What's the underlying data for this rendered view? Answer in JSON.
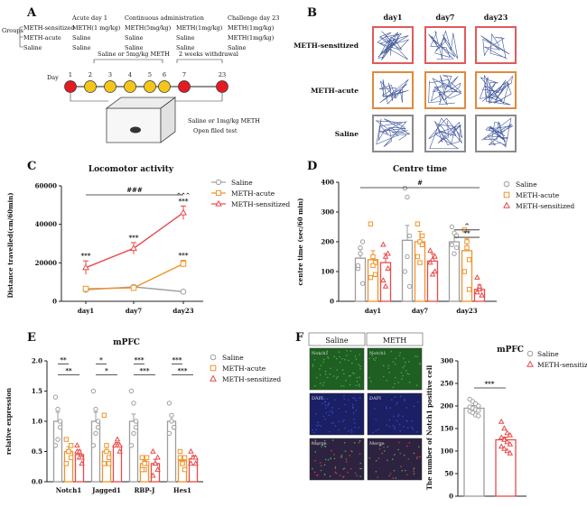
{
  "figure": {
    "panel_labels": [
      "A",
      "B",
      "C",
      "D",
      "E",
      "F"
    ]
  },
  "panel_a": {
    "groups_label": "Groups",
    "groups": [
      "METH-sensitized",
      "METH-acute",
      "Saline"
    ],
    "headers": [
      "Acute day 1",
      "Continuous administration",
      "Challenge day 23"
    ],
    "table": [
      [
        "METH(1 mg/kg)",
        "METH(5mg/kg)",
        "METH(1mg/kg)",
        "METH(1mg/kg)"
      ],
      [
        "Saline",
        "Saline",
        "Saline",
        "METH(1mg/kg)"
      ],
      [
        "Saline",
        "Saline",
        "Saline",
        "Saline"
      ]
    ],
    "day_label": "Day",
    "days": [
      "1",
      "2",
      "3",
      "4",
      "5",
      "6",
      "7",
      "23"
    ],
    "saline_or_meth_label": "Saline or 5mg/kg METH",
    "withdrawal_label": "2 weeks withdrawal",
    "test_label_1": "Saline or 1mg/kg METH",
    "test_label_2": "Open filed test",
    "colors": {
      "red": "#e31b23",
      "yellow": "#f5c518"
    }
  },
  "panel_b": {
    "columns": [
      "day1",
      "day7",
      "day23"
    ],
    "rows": [
      "METH-sensitized",
      "METH-acute",
      "Saline"
    ],
    "frame_colors": [
      "#e05a5a",
      "#e08a3c",
      "#8a8a8a"
    ],
    "density": [
      [
        0.9,
        0.6,
        0.35
      ],
      [
        0.55,
        0.8,
        0.85
      ],
      [
        0.7,
        0.75,
        0.7
      ]
    ]
  },
  "chart_c": {
    "type": "line",
    "title": "Locomotor activity",
    "ylabel": "Distance travelled(cm/60min)",
    "categories": [
      "day1",
      "day7",
      "day23"
    ],
    "ylim": [
      0,
      60000
    ],
    "yticks": [
      "0",
      "20000",
      "40000",
      "60000"
    ],
    "series": [
      {
        "name": "Saline",
        "values": [
          6000,
          7500,
          5000
        ],
        "errors": [
          500,
          600,
          400
        ],
        "color": "#9e9e9e",
        "marker": "circle"
      },
      {
        "name": "METH-acute",
        "values": [
          6500,
          7000,
          19500
        ],
        "errors": [
          600,
          500,
          1800
        ],
        "color": "#f0932b",
        "marker": "square"
      },
      {
        "name": "METH-sensitized",
        "values": [
          17500,
          27500,
          46000
        ],
        "errors": [
          3500,
          3000,
          3500
        ],
        "color": "#e84a4a",
        "marker": "triangle"
      }
    ],
    "annotations": {
      "sig_bracket": "###",
      "sensitized_marks": [
        "***",
        "***",
        "***"
      ],
      "acute_mark_day23": "***",
      "caret_mark": "^^^"
    }
  },
  "chart_d": {
    "type": "bar",
    "title": "Centre time",
    "ylabel": "centre time (sec/60 min)",
    "categories": [
      "day1",
      "day7",
      "day23"
    ],
    "ylim": [
      0,
      400
    ],
    "yticks": [
      "0",
      "100",
      "200",
      "300",
      "400"
    ],
    "series": [
      {
        "name": "Saline",
        "values": [
          145,
          205,
          200
        ],
        "errors": [
          30,
          50,
          30
        ],
        "color": "#9e9e9e",
        "marker": "circle",
        "points": [
          [
            110,
            180,
            200,
            120,
            160,
            60
          ],
          [
            380,
            350,
            220,
            100,
            150,
            50
          ],
          [
            250,
            230,
            180,
            190,
            160,
            220
          ]
        ]
      },
      {
        "name": "METH-acute",
        "values": [
          140,
          200,
          170
        ],
        "errors": [
          30,
          35,
          40
        ],
        "color": "#f0932b",
        "marker": "square",
        "points": [
          [
            260,
            150,
            130,
            80,
            120,
            90
          ],
          [
            260,
            200,
            220,
            150,
            130,
            190
          ],
          [
            240,
            200,
            140,
            100,
            180,
            40
          ]
        ]
      },
      {
        "name": "METH-sensitized",
        "values": [
          130,
          135,
          40
        ],
        "errors": [
          30,
          25,
          15
        ],
        "color": "#e84a4a",
        "marker": "triangle",
        "points": [
          [
            190,
            150,
            110,
            70,
            50,
            160
          ],
          [
            170,
            140,
            100,
            130,
            90,
            150
          ],
          [
            80,
            40,
            20,
            30,
            50,
            20
          ]
        ]
      }
    ],
    "annotations": {
      "sig_bracket": "#",
      "star2": "**",
      "caret": "^"
    }
  },
  "chart_e": {
    "type": "bar",
    "title": "mPFC",
    "ylabel": "relative expression",
    "categories": [
      "Notch1",
      "Jagged1",
      "RBP-J",
      "Hes1"
    ],
    "ylim": [
      0,
      2.0
    ],
    "yticks": [
      "0.0",
      "0.5",
      "1.0",
      "1.5",
      "2.0"
    ],
    "series": [
      {
        "name": "Saline",
        "values": [
          1.0,
          1.0,
          1.0,
          1.0
        ],
        "errors": [
          0.15,
          0.15,
          0.12,
          0.1
        ],
        "color": "#9e9e9e",
        "marker": "circle",
        "points": [
          [
            1.4,
            1.2,
            0.9,
            0.6,
            0.7,
            1.0
          ],
          [
            1.5,
            1.2,
            0.9,
            0.6,
            0.8,
            1.0
          ],
          [
            1.5,
            1.3,
            0.9,
            0.6,
            0.8,
            1.0
          ],
          [
            1.3,
            1.1,
            0.9,
            0.8,
            1.0,
            0.9
          ]
        ]
      },
      {
        "name": "METH-acute",
        "values": [
          0.5,
          0.5,
          0.3,
          0.35
        ],
        "errors": [
          0.08,
          0.1,
          0.05,
          0.05
        ],
        "color": "#f0932b",
        "marker": "square",
        "points": [
          [
            0.7,
            0.5,
            0.4,
            0.3,
            0.5,
            0.6
          ],
          [
            1.1,
            0.6,
            0.4,
            0.3,
            0.5,
            0.3
          ],
          [
            0.4,
            0.2,
            0.3,
            0.2,
            0.3,
            0.4
          ],
          [
            0.5,
            0.3,
            0.2,
            0.4,
            0.3,
            0.4
          ]
        ]
      },
      {
        "name": "METH-sensitized",
        "values": [
          0.45,
          0.6,
          0.3,
          0.38
        ],
        "errors": [
          0.07,
          0.05,
          0.07,
          0.05
        ],
        "color": "#e84a4a",
        "marker": "triangle",
        "points": [
          [
            0.6,
            0.4,
            0.3,
            0.5,
            0.5,
            0.4
          ],
          [
            0.6,
            0.7,
            0.5,
            0.6,
            0.6,
            0.6
          ],
          [
            0.5,
            0.3,
            0.2,
            0.1,
            0.3,
            0.4
          ],
          [
            0.5,
            0.4,
            0.3,
            0.3,
            0.4,
            0.4
          ]
        ]
      }
    ],
    "annotations": {
      "top": [
        "**",
        "*",
        "***",
        "***"
      ],
      "bottom": [
        "**",
        "*",
        "***",
        "***"
      ]
    }
  },
  "panel_f": {
    "columns": [
      "Saline",
      "METH"
    ],
    "rows": [
      "Notch1",
      "DAPI",
      "Merge"
    ]
  },
  "chart_f": {
    "type": "bar",
    "title": "mPFC",
    "ylabel": "The number of Notch1 positive cell",
    "ylim": [
      0,
      300
    ],
    "yticks": [
      "0",
      "50",
      "100",
      "150",
      "200",
      "250",
      "300"
    ],
    "series": [
      {
        "name": "Saline",
        "value": 195,
        "error": 6,
        "color": "#9e9e9e",
        "marker": "circle",
        "points": [
          215,
          210,
          205,
          200,
          198,
          195,
          192,
          190,
          188,
          185,
          180,
          178
        ]
      },
      {
        "name": "METH-sensitized",
        "value": 125,
        "error": 6,
        "color": "#e84a4a",
        "marker": "triangle",
        "points": [
          165,
          150,
          140,
          135,
          130,
          125,
          120,
          115,
          110,
          105,
          100,
          95
        ]
      }
    ],
    "annotations": {
      "sig": "***"
    }
  }
}
